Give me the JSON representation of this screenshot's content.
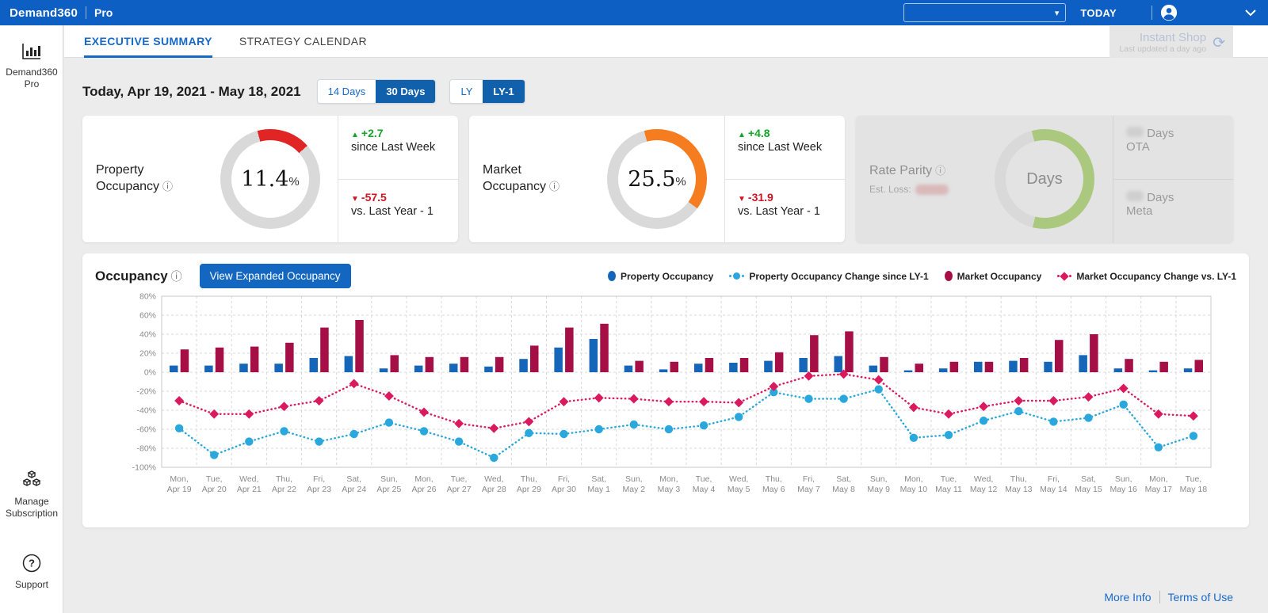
{
  "topbar": {
    "brand": "Demand360",
    "tier": "Pro",
    "today_label": "TODAY"
  },
  "sidebar": {
    "product": "Demand360 Pro",
    "manage": "Manage Subscription",
    "support": "Support"
  },
  "tabs": {
    "executive": "EXECUTIVE SUMMARY",
    "strategy": "STRATEGY CALENDAR"
  },
  "instant_shop": {
    "title": "Instant Shop",
    "subtitle": "Last updated a day ago"
  },
  "filters": {
    "date_range": "Today, Apr 19, 2021 - May 18, 2021",
    "period_14": "14 Days",
    "period_30": "30 Days",
    "period_selected": "30 Days",
    "year_ly": "LY",
    "year_ly1": "LY-1",
    "year_selected": "LY-1"
  },
  "cards": [
    {
      "title": "Property Occupancy",
      "pct": 11.4,
      "value": "11.4",
      "unit": "%",
      "arc_color": "#e12424",
      "delta_week": "+2.7",
      "delta_week_label": "since Last Week",
      "delta_year": "-57.5",
      "delta_year_label": "vs. Last Year - 1"
    },
    {
      "title": "Market Occupancy",
      "pct": 25.5,
      "value": "25.5",
      "unit": "%",
      "arc_color": "#f57c1f",
      "delta_week": "+4.8",
      "delta_week_label": "since Last Week",
      "delta_year": "-31.9",
      "delta_year_label": "vs. Last Year - 1"
    }
  ],
  "rate_parity": {
    "title": "Rate Parity",
    "est_loss_label": "Est. Loss:",
    "center_label": "Days",
    "arc_color": "#abc97e",
    "ota_line1": "Days",
    "ota_line2": "OTA",
    "meta_line1": "Days",
    "meta_line2": "Meta"
  },
  "chart": {
    "title": "Occupancy",
    "button": "View Expanded Occupancy",
    "chart_data": {
      "type": "bar+line",
      "title": "Occupancy",
      "ylim": [
        -100,
        80
      ],
      "ytick_step": 20,
      "grid": true,
      "legend_position": "top-right",
      "categories_day": [
        "Mon,",
        "Tue,",
        "Wed,",
        "Thu,",
        "Fri,",
        "Sat,",
        "Sun,",
        "Mon,",
        "Tue,",
        "Wed,",
        "Thu,",
        "Fri,",
        "Sat,",
        "Sun,",
        "Mon,",
        "Tue,",
        "Wed,",
        "Thu,",
        "Fri,",
        "Sat,",
        "Sun,",
        "Mon,",
        "Tue,",
        "Wed,",
        "Thu,",
        "Fri,",
        "Sat,",
        "Sun,",
        "Mon,",
        "Tue,"
      ],
      "categories_date": [
        "Apr 19",
        "Apr 20",
        "Apr 21",
        "Apr 22",
        "Apr 23",
        "Apr 24",
        "Apr 25",
        "Apr 26",
        "Apr 27",
        "Apr 28",
        "Apr 29",
        "Apr 30",
        "May 1",
        "May 2",
        "May 3",
        "May 4",
        "May 5",
        "May 6",
        "May 7",
        "May 8",
        "May 9",
        "May 10",
        "May 11",
        "May 12",
        "May 13",
        "May 14",
        "May 15",
        "May 16",
        "May 17",
        "May 18"
      ],
      "series": [
        {
          "name": "Property Occupancy",
          "type": "bar",
          "marker": "none",
          "color": "#1565b8",
          "values": [
            7,
            7,
            9,
            9,
            15,
            17,
            4,
            7,
            9,
            6,
            14,
            26,
            35,
            7,
            3,
            9,
            10,
            12,
            15,
            17,
            7,
            2,
            4,
            11,
            12,
            11,
            18,
            4,
            2,
            4
          ]
        },
        {
          "name": "Property Occupancy Change since LY-1",
          "type": "line",
          "marker": "circle",
          "color": "#2aa7dc",
          "values": [
            -59,
            -87,
            -73,
            -62,
            -73,
            -65,
            -53,
            -62,
            -73,
            -90,
            -64,
            -65,
            -60,
            -55,
            -60,
            -56,
            -47,
            -21,
            -28,
            -28,
            -18,
            -69,
            -66,
            -51,
            -41,
            -52,
            -48,
            -34,
            -79,
            -67
          ]
        },
        {
          "name": "Market Occupancy",
          "type": "bar",
          "marker": "none",
          "color": "#a50f45",
          "values": [
            24,
            26,
            27,
            31,
            47,
            55,
            18,
            16,
            16,
            16,
            28,
            47,
            51,
            12,
            11,
            15,
            15,
            21,
            39,
            43,
            16,
            9,
            11,
            11,
            15,
            34,
            40,
            14,
            11,
            13
          ]
        },
        {
          "name": "Market Occupancy Change vs. LY-1",
          "type": "line",
          "marker": "diamond",
          "color": "#d91a5e",
          "values": [
            -30,
            -44,
            -44,
            -36,
            -30,
            -12,
            -25,
            -42,
            -54,
            -59,
            -52,
            -31,
            -27,
            -28,
            -31,
            -31,
            -32,
            -15,
            -4,
            -2,
            -8,
            -37,
            -44,
            -36,
            -30,
            -30,
            -26,
            -17,
            -44,
            -46
          ]
        }
      ]
    }
  },
  "footer": {
    "more_info": "More Info",
    "terms": "Terms of Use"
  }
}
